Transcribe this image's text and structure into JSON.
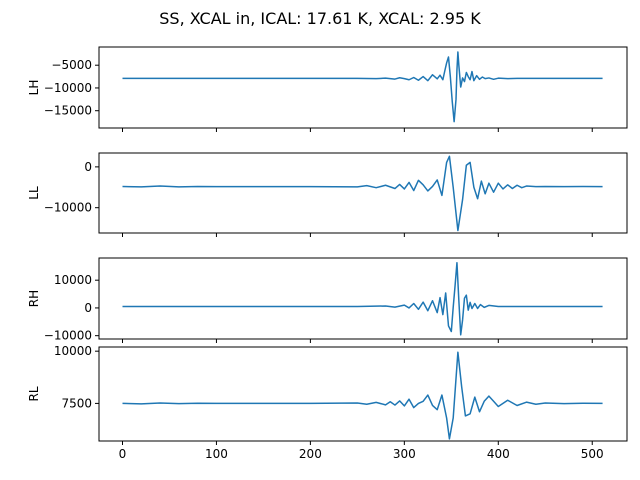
{
  "figure_title": "SS, XCAL in, ICAL: 17.61 K, XCAL: 2.95 K",
  "chart_data": [
    {
      "type": "line",
      "ylabel": "LH",
      "xlim": [
        -25,
        537
      ],
      "ylim": [
        -18800,
        -1000
      ],
      "yticks": [
        -15000,
        -10000,
        -5000
      ],
      "ytick_labels": [
        "−15000",
        "−10000",
        "−5000"
      ],
      "xticks": [
        0,
        100,
        200,
        300,
        400,
        500
      ],
      "xtick_labels": [],
      "color": "#1f77b4",
      "series": [
        {
          "x": [
            0,
            50,
            100,
            150,
            200,
            250,
            270,
            280,
            290,
            295,
            300,
            305,
            310,
            315,
            320,
            325,
            330,
            335,
            338,
            341,
            343,
            345,
            347,
            349,
            351,
            353,
            355,
            356,
            357,
            358,
            360,
            362,
            364,
            366,
            368,
            370,
            372,
            374,
            377,
            380,
            383,
            386,
            390,
            395,
            400,
            410,
            420,
            450,
            480,
            511
          ],
          "values": [
            -7900,
            -7900,
            -7900,
            -7900,
            -7900,
            -7900,
            -7950,
            -7850,
            -8050,
            -7750,
            -7950,
            -8200,
            -7700,
            -8300,
            -7500,
            -8400,
            -7100,
            -8000,
            -7200,
            -8200,
            -6300,
            -4500,
            -3200,
            -7600,
            -13000,
            -17400,
            -12500,
            -6000,
            -2100,
            -5000,
            -9800,
            -7800,
            -8600,
            -6600,
            -7500,
            -8200,
            -6400,
            -8400,
            -7300,
            -8100,
            -7600,
            -7950,
            -7800,
            -8100,
            -7850,
            -7950,
            -7900,
            -7900,
            -7900,
            -7900
          ]
        }
      ]
    },
    {
      "type": "line",
      "ylabel": "LL",
      "xlim": [
        -25,
        537
      ],
      "ylim": [
        -16200,
        3400
      ],
      "yticks": [
        -10000,
        0
      ],
      "ytick_labels": [
        "−10000",
        "0"
      ],
      "xticks": [
        0,
        100,
        200,
        300,
        400,
        500
      ],
      "xtick_labels": [],
      "color": "#1f77b4",
      "series": [
        {
          "x": [
            0,
            20,
            40,
            60,
            80,
            100,
            150,
            200,
            250,
            260,
            270,
            280,
            290,
            295,
            300,
            305,
            310,
            315,
            320,
            325,
            330,
            335,
            340,
            345,
            348,
            352,
            357,
            362,
            366,
            370,
            374,
            378,
            382,
            386,
            390,
            395,
            400,
            405,
            410,
            415,
            420,
            425,
            430,
            440,
            450,
            470,
            490,
            511
          ],
          "values": [
            -4800,
            -4900,
            -4700,
            -4900,
            -4800,
            -4850,
            -4850,
            -4850,
            -4900,
            -4600,
            -5100,
            -4500,
            -5300,
            -4300,
            -5400,
            -3800,
            -5800,
            -3300,
            -4400,
            -5900,
            -4800,
            -3200,
            -7000,
            1100,
            2600,
            -5000,
            -15600,
            -8000,
            400,
            1100,
            -5000,
            -7800,
            -3500,
            -6600,
            -4000,
            -6200,
            -4000,
            -5400,
            -4400,
            -5300,
            -4500,
            -5100,
            -4700,
            -4850,
            -4800,
            -4850,
            -4800,
            -4850
          ]
        }
      ]
    },
    {
      "type": "line",
      "ylabel": "RH",
      "xlim": [
        -25,
        537
      ],
      "ylim": [
        -11200,
        18000
      ],
      "yticks": [
        -10000,
        0,
        10000
      ],
      "ytick_labels": [
        "−10000",
        "0",
        "10000"
      ],
      "xticks": [
        0,
        100,
        200,
        300,
        400,
        500
      ],
      "xtick_labels": [],
      "color": "#1f77b4",
      "series": [
        {
          "x": [
            0,
            50,
            100,
            150,
            200,
            250,
            280,
            290,
            300,
            305,
            310,
            315,
            320,
            325,
            330,
            335,
            338,
            341,
            344,
            347,
            350,
            352,
            354,
            356,
            358,
            360,
            362,
            364,
            366,
            368,
            370,
            372,
            375,
            378,
            381,
            385,
            390,
            400,
            420,
            450,
            480,
            511
          ],
          "values": [
            500,
            500,
            500,
            500,
            500,
            500,
            700,
            300,
            1000,
            0,
            1600,
            -500,
            2100,
            -1000,
            2600,
            -1700,
            3700,
            -2400,
            5400,
            -6500,
            -8500,
            200,
            8000,
            16300,
            2800,
            -9700,
            -4300,
            3500,
            4600,
            -800,
            2000,
            -200,
            1600,
            -200,
            1200,
            200,
            900,
            500,
            500,
            500,
            500,
            500
          ]
        }
      ]
    },
    {
      "type": "line",
      "ylabel": "RL",
      "xlim": [
        -25,
        537
      ],
      "ylim": [
        5700,
        10200
      ],
      "yticks": [
        7500,
        10000
      ],
      "ytick_labels": [
        "7500",
        "10000"
      ],
      "xticks": [
        0,
        100,
        200,
        300,
        400,
        500
      ],
      "xtick_labels": [
        "0",
        "100",
        "200",
        "300",
        "400",
        "500"
      ],
      "color": "#1f77b4",
      "series": [
        {
          "x": [
            0,
            20,
            40,
            60,
            80,
            100,
            150,
            200,
            250,
            260,
            270,
            280,
            285,
            290,
            295,
            300,
            305,
            310,
            315,
            320,
            325,
            330,
            335,
            340,
            345,
            348,
            352,
            357,
            361,
            365,
            370,
            375,
            380,
            385,
            390,
            395,
            400,
            410,
            420,
            430,
            440,
            450,
            470,
            490,
            511
          ],
          "values": [
            7500,
            7480,
            7520,
            7490,
            7510,
            7500,
            7500,
            7500,
            7520,
            7460,
            7550,
            7430,
            7580,
            7420,
            7620,
            7380,
            7700,
            7300,
            7500,
            7600,
            7900,
            7400,
            7200,
            7900,
            6800,
            5800,
            6800,
            9950,
            8300,
            6900,
            7000,
            7800,
            7100,
            7600,
            7850,
            7600,
            7350,
            7650,
            7400,
            7560,
            7460,
            7520,
            7490,
            7505,
            7500
          ]
        }
      ]
    }
  ]
}
